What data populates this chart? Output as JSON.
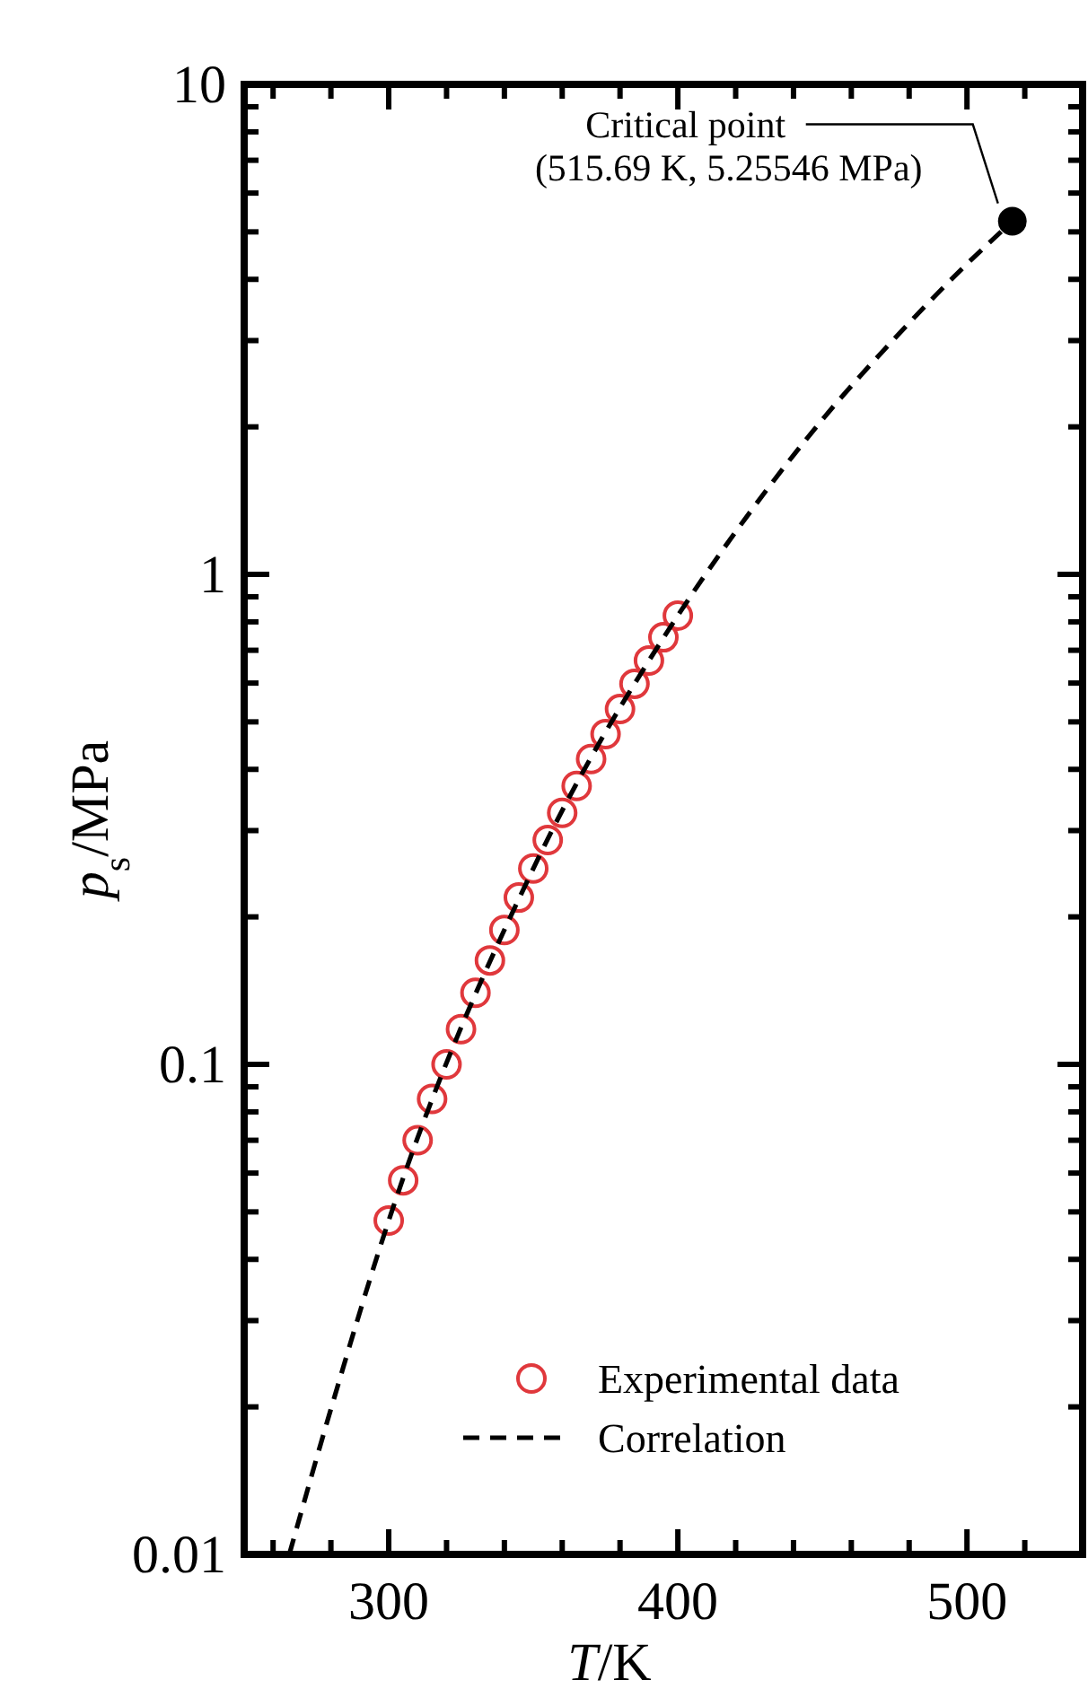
{
  "chart_data": {
    "type": "scatter",
    "xlabel": "T/K",
    "ylabel": "p$_{s}$/MPa",
    "log": "y",
    "xlim": [
      250,
      540
    ],
    "ylim": [
      0.01,
      10
    ],
    "xticks": [
      {
        "value": 260,
        "label": null
      },
      {
        "value": 280,
        "label": null
      },
      300,
      {
        "value": 320,
        "label": null
      },
      {
        "value": 340,
        "label": null
      },
      {
        "value": 360,
        "label": null
      },
      {
        "value": 380,
        "label": null
      },
      400,
      {
        "value": 420,
        "label": null
      },
      {
        "value": 440,
        "label": null
      },
      {
        "value": 460,
        "label": null
      },
      {
        "value": 480,
        "label": null
      },
      500,
      {
        "value": 520,
        "label": null
      }
    ],
    "yticks": [
      0.01,
      {
        "value": 0.02,
        "label": null
      },
      {
        "value": 0.03,
        "label": null
      },
      {
        "value": 0.04,
        "label": null
      },
      {
        "value": 0.05,
        "label": null
      },
      {
        "value": 0.06,
        "label": null
      },
      {
        "value": 0.07,
        "label": null
      },
      {
        "value": 0.08,
        "label": null
      },
      {
        "value": 0.09,
        "label": null
      },
      0.1,
      {
        "value": 0.2,
        "label": null
      },
      {
        "value": 0.3,
        "label": null
      },
      {
        "value": 0.4,
        "label": null
      },
      {
        "value": 0.5,
        "label": null
      },
      {
        "value": 0.6,
        "label": null
      },
      {
        "value": 0.7,
        "label": null
      },
      {
        "value": 0.8,
        "label": null
      },
      {
        "value": 0.9,
        "label": null
      },
      1,
      {
        "value": 2,
        "label": null
      },
      {
        "value": 3,
        "label": null
      },
      {
        "value": 4,
        "label": null
      },
      {
        "value": 5,
        "label": null
      },
      {
        "value": 6,
        "label": null
      },
      {
        "value": 7,
        "label": null
      },
      {
        "value": 8,
        "label": null
      },
      {
        "value": 9,
        "label": null
      },
      10
    ],
    "grid": false,
    "legend": "bottom right",
    "series": [
      {
        "name": "Experimental data",
        "color": "#e0383c",
        "marker": "circle",
        "x": [
          300,
          305,
          310,
          315,
          320,
          325,
          330,
          335,
          340,
          345,
          350,
          355,
          360,
          365,
          370,
          375,
          380,
          385,
          390,
          395,
          400
        ],
        "values": [
          0.048,
          0.058,
          0.07,
          0.085,
          0.1,
          0.118,
          0.14,
          0.163,
          0.188,
          0.219,
          0.251,
          0.287,
          0.326,
          0.37,
          0.42,
          0.472,
          0.531,
          0.598,
          0.667,
          0.744,
          0.824
        ]
      },
      {
        "name": "Correlation",
        "type": "line",
        "color": "#000000",
        "line_style": "dashed",
        "marker": "none",
        "x": [
          265.6,
          280,
          300,
          350,
          400,
          425,
          450,
          475,
          500,
          515.69
        ],
        "values": [
          0.01,
          0.0198,
          0.048,
          0.251,
          0.824,
          1.34,
          2.07,
          3.03,
          4.3,
          5.25546
        ]
      },
      {
        "color": "#000000",
        "marker": "circle",
        "x": [
          515.69
        ],
        "values": [
          5.25546
        ]
      }
    ],
    "annotations": [
      {
        "text": "Critical point\n(515.69 K, 5.25546 MPa)",
        "x": 515.69,
        "y": 5.25546
      }
    ]
  }
}
